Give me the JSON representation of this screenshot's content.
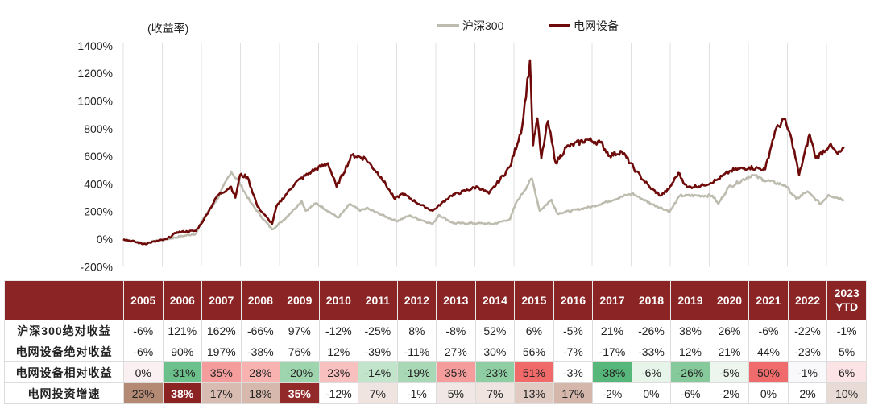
{
  "chart_data": {
    "type": "line",
    "ylabel": "(收益率)",
    "ylim": [
      -200,
      1400
    ],
    "yticks": [
      "1400%",
      "1200%",
      "1000%",
      "800%",
      "600%",
      "400%",
      "200%",
      "0%",
      "-200%"
    ],
    "ytick_values": [
      1400,
      1200,
      1000,
      800,
      600,
      400,
      200,
      0,
      -200
    ],
    "xlim": [
      2005,
      2024
    ],
    "grid": "vertical at year starts",
    "legend_position": "top",
    "series": [
      {
        "name": "沪深300",
        "color": "#bdbcaf",
        "points": [
          [
            2005.0,
            0
          ],
          [
            2005.52,
            -30
          ],
          [
            2006.11,
            0
          ],
          [
            2006.86,
            40
          ],
          [
            2007.06,
            155
          ],
          [
            2007.41,
            290
          ],
          [
            2007.76,
            490
          ],
          [
            2007.97,
            410
          ],
          [
            2008.24,
            275
          ],
          [
            2008.5,
            175
          ],
          [
            2008.81,
            70
          ],
          [
            2009.11,
            140
          ],
          [
            2009.57,
            275
          ],
          [
            2009.67,
            205
          ],
          [
            2009.94,
            260
          ],
          [
            2010.5,
            155
          ],
          [
            2010.81,
            255
          ],
          [
            2011.06,
            205
          ],
          [
            2011.22,
            225
          ],
          [
            2011.99,
            130
          ],
          [
            2012.32,
            170
          ],
          [
            2012.92,
            110
          ],
          [
            2013.08,
            175
          ],
          [
            2013.45,
            115
          ],
          [
            2014.07,
            115
          ],
          [
            2014.48,
            110
          ],
          [
            2014.9,
            145
          ],
          [
            2015.05,
            260
          ],
          [
            2015.46,
            440
          ],
          [
            2015.66,
            205
          ],
          [
            2015.96,
            285
          ],
          [
            2016.11,
            185
          ],
          [
            2016.99,
            235
          ],
          [
            2018.02,
            330
          ],
          [
            2018.52,
            255
          ],
          [
            2018.99,
            200
          ],
          [
            2019.25,
            315
          ],
          [
            2020.08,
            315
          ],
          [
            2020.23,
            255
          ],
          [
            2020.49,
            375
          ],
          [
            2021.09,
            465
          ],
          [
            2021.4,
            430
          ],
          [
            2021.94,
            390
          ],
          [
            2022.23,
            290
          ],
          [
            2022.5,
            345
          ],
          [
            2022.85,
            255
          ],
          [
            2023.05,
            320
          ],
          [
            2023.45,
            285
          ]
        ]
      },
      {
        "name": "电网设备",
        "color": "#6e0a0a",
        "points": [
          [
            2005.0,
            0
          ],
          [
            2005.52,
            -35
          ],
          [
            2006.11,
            0
          ],
          [
            2006.38,
            50
          ],
          [
            2006.86,
            60
          ],
          [
            2007.06,
            140
          ],
          [
            2007.41,
            315
          ],
          [
            2007.76,
            380
          ],
          [
            2007.87,
            300
          ],
          [
            2007.99,
            465
          ],
          [
            2008.18,
            450
          ],
          [
            2008.44,
            235
          ],
          [
            2008.81,
            110
          ],
          [
            2008.92,
            235
          ],
          [
            2009.41,
            410
          ],
          [
            2009.82,
            490
          ],
          [
            2010.24,
            550
          ],
          [
            2010.46,
            380
          ],
          [
            2010.86,
            610
          ],
          [
            2011.19,
            585
          ],
          [
            2011.6,
            450
          ],
          [
            2011.95,
            290
          ],
          [
            2012.15,
            330
          ],
          [
            2012.57,
            255
          ],
          [
            2012.92,
            205
          ],
          [
            2013.39,
            315
          ],
          [
            2014.07,
            380
          ],
          [
            2014.36,
            330
          ],
          [
            2014.9,
            525
          ],
          [
            2015.21,
            815
          ],
          [
            2015.41,
            1295
          ],
          [
            2015.49,
            680
          ],
          [
            2015.6,
            875
          ],
          [
            2015.7,
            585
          ],
          [
            2015.87,
            855
          ],
          [
            2016.07,
            550
          ],
          [
            2016.34,
            665
          ],
          [
            2016.86,
            720
          ],
          [
            2017.21,
            700
          ],
          [
            2017.45,
            605
          ],
          [
            2017.76,
            635
          ],
          [
            2018.13,
            490
          ],
          [
            2018.48,
            375
          ],
          [
            2018.75,
            315
          ],
          [
            2018.96,
            360
          ],
          [
            2019.21,
            480
          ],
          [
            2019.43,
            375
          ],
          [
            2019.85,
            390
          ],
          [
            2020.2,
            430
          ],
          [
            2020.55,
            495
          ],
          [
            2021.02,
            520
          ],
          [
            2021.43,
            505
          ],
          [
            2021.68,
            780
          ],
          [
            2021.91,
            870
          ],
          [
            2022.11,
            720
          ],
          [
            2022.3,
            465
          ],
          [
            2022.57,
            760
          ],
          [
            2022.73,
            585
          ],
          [
            2023.08,
            680
          ],
          [
            2023.29,
            615
          ],
          [
            2023.45,
            655
          ]
        ]
      }
    ],
    "table": {
      "header_color": "#8b2525",
      "columns": [
        "2005",
        "2006",
        "2007",
        "2008",
        "2009",
        "2010",
        "2011",
        "2012",
        "2013",
        "2014",
        "2015",
        "2016",
        "2017",
        "2018",
        "2019",
        "2020",
        "2021",
        "2022",
        "2023\nYTD"
      ],
      "rows": [
        {
          "label": "沪深300绝对收益",
          "values": [
            "-6%",
            "121%",
            "162%",
            "-66%",
            "97%",
            "-12%",
            "-25%",
            "8%",
            "-8%",
            "52%",
            "6%",
            "-5%",
            "21%",
            "-26%",
            "38%",
            "26%",
            "-6%",
            "-22%",
            "-1%"
          ]
        },
        {
          "label": "电网设备绝对收益",
          "values": [
            "-6%",
            "90%",
            "197%",
            "-38%",
            "76%",
            "12%",
            "-39%",
            "-11%",
            "27%",
            "30%",
            "56%",
            "-7%",
            "-17%",
            "-33%",
            "12%",
            "21%",
            "44%",
            "-23%",
            "5%"
          ]
        },
        {
          "label": "电网设备相对收益",
          "values": [
            "0%",
            "-31%",
            "35%",
            "28%",
            "-20%",
            "23%",
            "-14%",
            "-19%",
            "35%",
            "-23%",
            "51%",
            "-3%",
            "-38%",
            "-6%",
            "-26%",
            "-5%",
            "50%",
            "-1%",
            "6%"
          ],
          "colors": [
            "#fbf0f1",
            "#6cc08b",
            "#f59d9d",
            "#f8b3b1",
            "#9fd5ae",
            "#f9c0c0",
            "#c2e4cb",
            "#a8d8b5",
            "#f59d9d",
            "#8fcda2",
            "#f06a6a",
            "#ffffff",
            "#57b77a",
            "#e6f4ea",
            "#86c99a",
            "#ecf6ef",
            "#f06b6b",
            "#f9f9fb",
            "#fbe3e6"
          ]
        },
        {
          "label": "电网投资增速",
          "values": [
            "23%",
            "38%",
            "17%",
            "18%",
            "35%",
            "-12%",
            "7%",
            "-1%",
            "5%",
            "7%",
            "13%",
            "17%",
            "-2%",
            "0%",
            "-6%",
            "-2%",
            "0%",
            "2%",
            "10%"
          ],
          "colors": [
            "#b58a75",
            "#8b2323",
            "#d9bcb1",
            "#d7b8ac",
            "#922a2a",
            "#ffffff",
            "#efe4e0",
            "#ffffff",
            "#f1e8e5",
            "#efe4e0",
            "#e0cbc3",
            "#d4b6aa",
            "#ffffff",
            "#ffffff",
            "#ffffff",
            "#ffffff",
            "#ffffff",
            "#ffffff",
            "#e8dbd6"
          ],
          "bold_light": [
            "38%",
            "35%"
          ]
        }
      ]
    }
  }
}
